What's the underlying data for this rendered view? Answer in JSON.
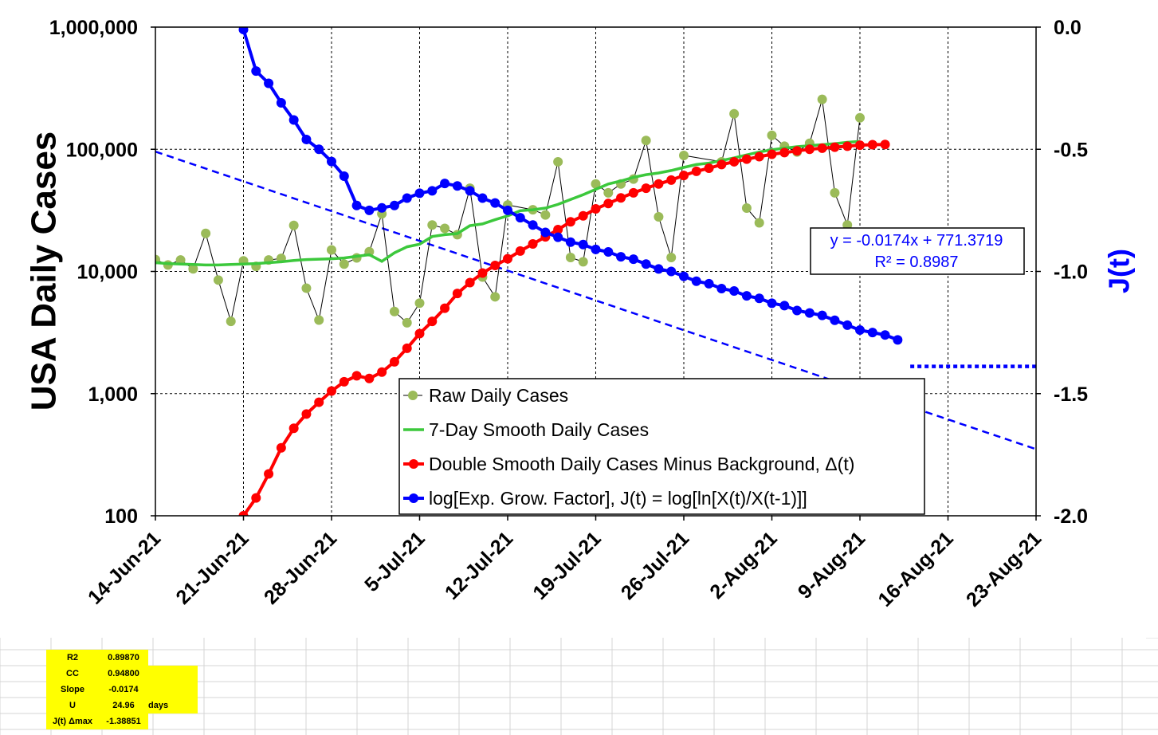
{
  "chart_data": {
    "type": "line",
    "ylabel": "USA Daily Cases",
    "y2label": "J(t)",
    "y_scale": "log",
    "ylim": [
      100,
      1000000
    ],
    "y2lim": [
      -2.0,
      0.0
    ],
    "xlim": [
      "2021-06-14",
      "2021-08-23"
    ],
    "y_ticks": [
      "1,000,000",
      "100,000",
      "10,000",
      "1,000",
      "100"
    ],
    "y2_ticks": [
      "0.0",
      "-0.5",
      "-1.0",
      "-1.5",
      "-2.0"
    ],
    "x_ticks": [
      "14-Jun-21",
      "21-Jun-21",
      "28-Jun-21",
      "5-Jul-21",
      "12-Jul-21",
      "19-Jul-21",
      "26-Jul-21",
      "2-Aug-21",
      "9-Aug-21",
      "16-Aug-21",
      "23-Aug-21"
    ],
    "grid": true,
    "legend_position": "bottom-center",
    "x_dates": [
      "2021-06-14",
      "2021-06-15",
      "2021-06-16",
      "2021-06-17",
      "2021-06-18",
      "2021-06-19",
      "2021-06-20",
      "2021-06-21",
      "2021-06-22",
      "2021-06-23",
      "2021-06-24",
      "2021-06-25",
      "2021-06-26",
      "2021-06-27",
      "2021-06-28",
      "2021-06-29",
      "2021-06-30",
      "2021-07-01",
      "2021-07-02",
      "2021-07-03",
      "2021-07-04",
      "2021-07-05",
      "2021-07-06",
      "2021-07-07",
      "2021-07-08",
      "2021-07-09",
      "2021-07-10",
      "2021-07-11",
      "2021-07-12",
      "2021-07-13",
      "2021-07-14",
      "2021-07-15",
      "2021-07-16",
      "2021-07-17",
      "2021-07-18",
      "2021-07-19",
      "2021-07-20",
      "2021-07-21",
      "2021-07-22",
      "2021-07-23",
      "2021-07-24",
      "2021-07-25",
      "2021-07-26",
      "2021-07-27",
      "2021-07-28",
      "2021-07-29",
      "2021-07-30",
      "2021-07-31",
      "2021-08-01",
      "2021-08-02",
      "2021-08-03",
      "2021-08-04",
      "2021-08-05",
      "2021-08-06",
      "2021-08-07",
      "2021-08-08",
      "2021-08-09",
      "2021-08-10",
      "2021-08-11",
      "2021-08-12",
      "2021-08-13"
    ],
    "series": [
      {
        "name": "Raw Daily Cases",
        "axis": "left",
        "color": "#9bbb59",
        "values": [
          12500,
          11300,
          12400,
          10500,
          20500,
          8500,
          3900,
          12200,
          11000,
          12400,
          12800,
          23800,
          7300,
          4000,
          15000,
          11500,
          12900,
          14500,
          29600,
          4700,
          3800,
          5500,
          24000,
          22500,
          20000,
          48000,
          9000,
          6200,
          35000,
          null,
          32000,
          29000,
          79000,
          13000,
          12000,
          52000,
          44000,
          52000,
          57000,
          118000,
          28000,
          13000,
          89000,
          null,
          null,
          79000,
          195000,
          33000,
          25000,
          130000,
          106000,
          95000,
          112000,
          256000,
          44000,
          24000,
          181000,
          null,
          null,
          null,
          null
        ]
      },
      {
        "name": "7-Day Smooth Daily Cases",
        "axis": "left",
        "color": "#3cc83c",
        "values": [
          11800,
          11600,
          11500,
          11400,
          11300,
          11300,
          11400,
          11500,
          11600,
          11800,
          12000,
          12300,
          12500,
          12600,
          12700,
          12900,
          13300,
          13700,
          12100,
          14200,
          15900,
          16700,
          19300,
          20000,
          20400,
          23700,
          24500,
          26500,
          28500,
          31400,
          32000,
          33000,
          35400,
          38800,
          42500,
          47000,
          52000,
          55000,
          59000,
          62000,
          64000,
          67000,
          71000,
          75000,
          77000,
          81000,
          85000,
          90000,
          95000,
          99000,
          102000,
          105000,
          107000,
          109000,
          111000,
          114000,
          116000,
          null,
          null,
          null,
          null
        ]
      },
      {
        "name": "Double Smooth Daily Cases Minus Background, Δ(t)",
        "axis": "left",
        "color": "#ff0000",
        "values": [
          null,
          null,
          null,
          null,
          null,
          null,
          null,
          100,
          140,
          220,
          360,
          520,
          680,
          850,
          1050,
          1250,
          1400,
          1330,
          1500,
          1820,
          2350,
          3100,
          3900,
          5000,
          6600,
          8100,
          9700,
          11200,
          12700,
          14700,
          16800,
          19200,
          22000,
          25500,
          28500,
          32500,
          36000,
          40000,
          44000,
          48000,
          52000,
          56000,
          61000,
          66000,
          70000,
          75000,
          79000,
          83000,
          87000,
          91000,
          94000,
          97000,
          100000,
          102000,
          104000,
          106000,
          108000,
          109000,
          109500,
          null,
          null
        ]
      },
      {
        "name": "log[Exp. Grow. Factor], J(t) = log[ln[X(t)/X(t-1)]]",
        "axis": "right",
        "color": "#0000ff",
        "values": [
          null,
          null,
          null,
          null,
          null,
          null,
          null,
          -0.01,
          -0.18,
          -0.23,
          -0.31,
          -0.38,
          -0.46,
          -0.5,
          -0.55,
          -0.61,
          -0.73,
          -0.75,
          -0.74,
          -0.73,
          -0.7,
          -0.68,
          -0.67,
          -0.64,
          -0.65,
          -0.67,
          -0.7,
          -0.72,
          -0.75,
          -0.78,
          -0.81,
          -0.84,
          -0.86,
          -0.88,
          -0.89,
          -0.91,
          -0.92,
          -0.94,
          -0.95,
          -0.97,
          -0.99,
          -1.0,
          -1.02,
          -1.04,
          -1.05,
          -1.07,
          -1.08,
          -1.1,
          -1.11,
          -1.13,
          -1.14,
          -1.16,
          -1.17,
          -1.18,
          -1.2,
          -1.22,
          -1.24,
          -1.25,
          -1.26,
          -1.28,
          null
        ]
      }
    ],
    "trendline": {
      "color": "#0000ff",
      "style": "dashed",
      "equation": "y = -0.0174x + 771.3719",
      "r_squared": "R² = 0.8987",
      "slope": -0.0174,
      "intercept": 771.3719,
      "x_origin": "1900-01-01"
    },
    "threshold_line": {
      "color": "#0000ff",
      "style": "dotted",
      "value": -1.38851,
      "x_from": "2021-08-13",
      "x_to": "2021-08-23"
    }
  },
  "stats_table": {
    "rows": [
      {
        "label": "R2",
        "value": "0.89870",
        "unit": ""
      },
      {
        "label": "CC",
        "value": "0.94800",
        "unit": ""
      },
      {
        "label": "Slope",
        "value": "-0.0174",
        "unit": ""
      },
      {
        "label": "U",
        "value": "24.96",
        "unit": "days"
      },
      {
        "label": "J(t) Δmax",
        "value": "-1.38851",
        "unit": ""
      }
    ]
  }
}
